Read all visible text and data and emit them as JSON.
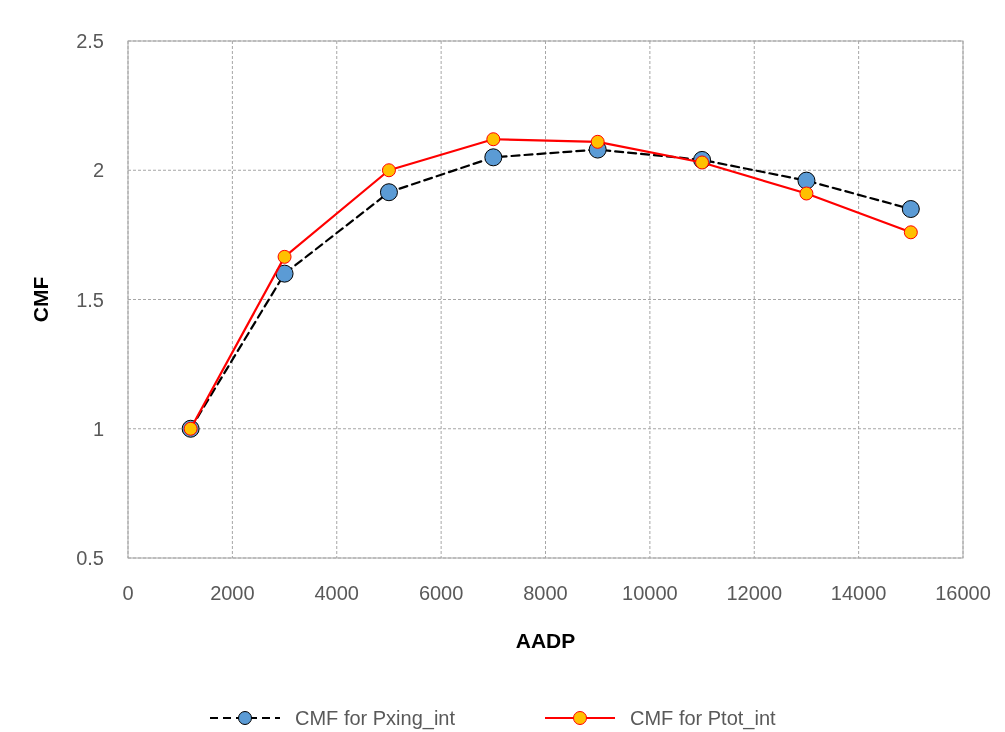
{
  "chart_data": {
    "type": "line",
    "xlabel": "AADP",
    "ylabel": "CMF",
    "x": [
      1200,
      3000,
      5000,
      7000,
      9000,
      11000,
      13000,
      15000
    ],
    "series": [
      {
        "name": "CMF for Pxing_int",
        "color": "#000000",
        "line_style": "dashed",
        "colors": [
          "#5b9bd5",
          "#5b9bd5",
          "#5b9bd5",
          "#5b9bd5",
          "#5b9bd5",
          "#5b9bd5",
          "#5b9bd5",
          "#5b9bd5"
        ],
        "values": [
          1.0,
          1.6,
          1.915,
          2.05,
          2.08,
          2.04,
          1.96,
          1.85
        ]
      },
      {
        "name": "CMF for Ptot_int",
        "color": "#ff0000",
        "line_style": "solid",
        "colors": [
          "#ffc000",
          "#ffc000",
          "#ffc000",
          "#ffc000",
          "#ffc000",
          "#ffc000",
          "#ffc000",
          "#ffc000"
        ],
        "values": [
          1.0,
          1.665,
          2.0,
          2.12,
          2.11,
          2.03,
          1.91,
          1.76
        ]
      }
    ],
    "xlim": [
      0,
      16000
    ],
    "xticks": [
      0,
      2000,
      4000,
      6000,
      8000,
      10000,
      12000,
      14000,
      16000
    ],
    "ylim": [
      0.5,
      2.5
    ],
    "yticks": [
      0.5,
      1,
      1.5,
      2,
      2.5
    ],
    "grid": true,
    "legend": "bottom",
    "marker": "circle"
  }
}
